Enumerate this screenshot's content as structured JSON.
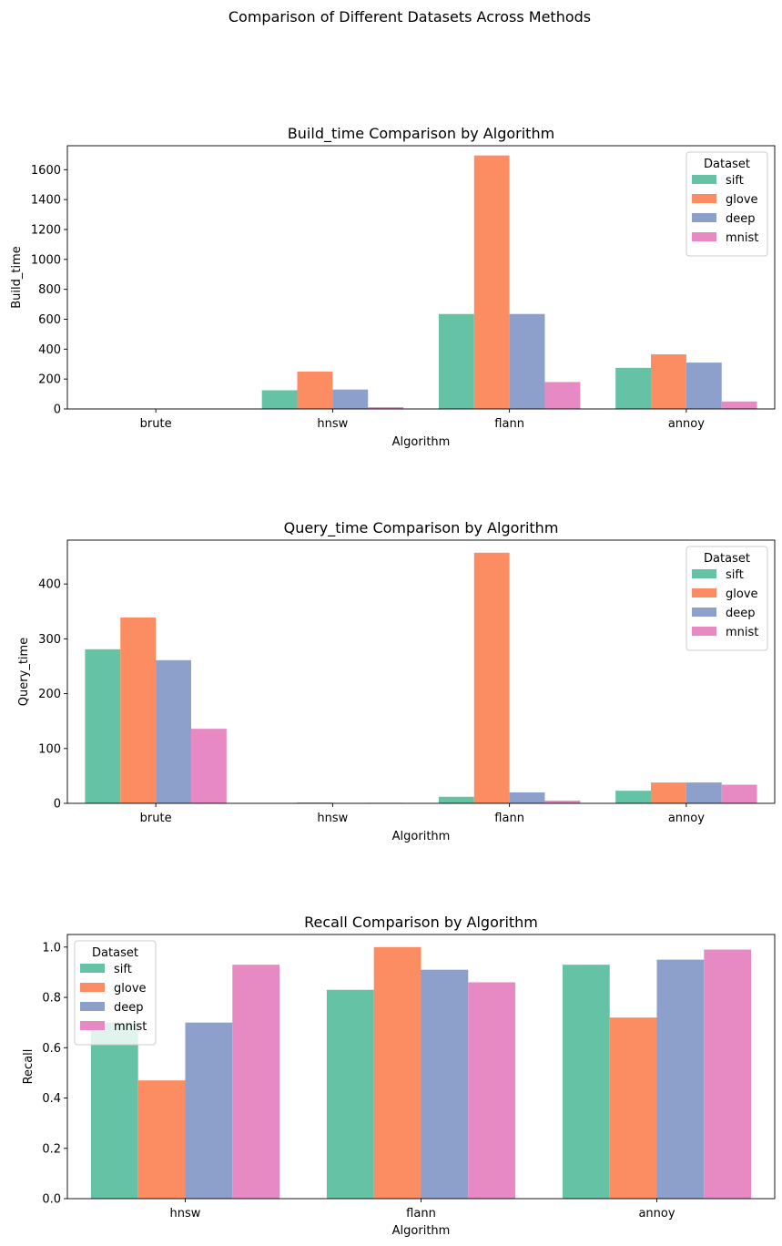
{
  "figure": {
    "suptitle": "Comparison of Different Datasets Across Methods"
  },
  "chart_data": [
    {
      "type": "bar",
      "title": "Build_time Comparison by Algorithm",
      "xlabel": "Algorithm",
      "ylabel": "Build_time",
      "categories": [
        "brute",
        "hnsw",
        "flann",
        "annoy"
      ],
      "ylim": [
        0,
        1760
      ],
      "yticks": [
        0,
        200,
        400,
        600,
        800,
        1000,
        1200,
        1400,
        1600
      ],
      "legend": {
        "title": "Dataset",
        "placement": "upper right"
      },
      "series": [
        {
          "name": "sift",
          "color": "#66c2a5",
          "values": [
            0,
            125,
            635,
            275
          ]
        },
        {
          "name": "glove",
          "color": "#fc8d62",
          "values": [
            0,
            250,
            1695,
            365
          ]
        },
        {
          "name": "deep",
          "color": "#8da0cb",
          "values": [
            0,
            130,
            635,
            310
          ]
        },
        {
          "name": "mnist",
          "color": "#e78ac3",
          "values": [
            0,
            12,
            180,
            50
          ]
        }
      ]
    },
    {
      "type": "bar",
      "title": "Query_time Comparison by Algorithm",
      "xlabel": "Algorithm",
      "ylabel": "Query_time",
      "categories": [
        "brute",
        "hnsw",
        "flann",
        "annoy"
      ],
      "ylim": [
        0,
        480
      ],
      "yticks": [
        0,
        100,
        200,
        300,
        400
      ],
      "legend": {
        "title": "Dataset",
        "placement": "upper right"
      },
      "series": [
        {
          "name": "sift",
          "color": "#66c2a5",
          "values": [
            281,
            0.3,
            12,
            23
          ]
        },
        {
          "name": "glove",
          "color": "#fc8d62",
          "values": [
            339,
            1.5,
            457,
            38
          ]
        },
        {
          "name": "deep",
          "color": "#8da0cb",
          "values": [
            261,
            0.3,
            20,
            38
          ]
        },
        {
          "name": "mnist",
          "color": "#e78ac3",
          "values": [
            136,
            1.0,
            5,
            34
          ]
        }
      ]
    },
    {
      "type": "bar",
      "title": "Recall Comparison by Algorithm",
      "xlabel": "Algorithm",
      "ylabel": "Recall",
      "categories": [
        "hnsw",
        "flann",
        "annoy"
      ],
      "ylim": [
        0,
        1.05
      ],
      "yticks": [
        0.0,
        0.2,
        0.4,
        0.6,
        0.8,
        1.0
      ],
      "ytick_labels": [
        "0.0",
        "0.2",
        "0.4",
        "0.6",
        "0.8",
        "1.0"
      ],
      "legend": {
        "title": "Dataset",
        "placement": "upper left"
      },
      "series": [
        {
          "name": "sift",
          "color": "#66c2a5",
          "values": [
            0.7,
            0.83,
            0.93
          ]
        },
        {
          "name": "glove",
          "color": "#fc8d62",
          "values": [
            0.47,
            1.0,
            0.72
          ]
        },
        {
          "name": "deep",
          "color": "#8da0cb",
          "values": [
            0.7,
            0.91,
            0.95
          ]
        },
        {
          "name": "mnist",
          "color": "#e78ac3",
          "values": [
            0.93,
            0.86,
            0.99
          ]
        }
      ]
    }
  ]
}
